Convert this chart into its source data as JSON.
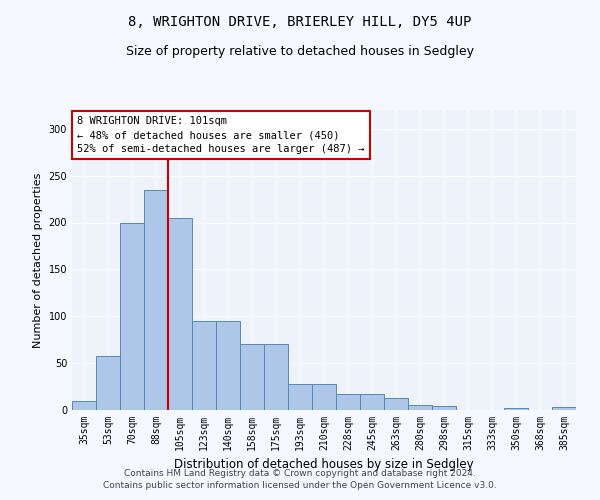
{
  "title": "8, WRIGHTON DRIVE, BRIERLEY HILL, DY5 4UP",
  "subtitle": "Size of property relative to detached houses in Sedgley",
  "xlabel": "Distribution of detached houses by size in Sedgley",
  "ylabel": "Number of detached properties",
  "categories": [
    "35sqm",
    "53sqm",
    "70sqm",
    "88sqm",
    "105sqm",
    "123sqm",
    "140sqm",
    "158sqm",
    "175sqm",
    "193sqm",
    "210sqm",
    "228sqm",
    "245sqm",
    "263sqm",
    "280sqm",
    "298sqm",
    "315sqm",
    "333sqm",
    "350sqm",
    "368sqm",
    "385sqm"
  ],
  "values": [
    10,
    58,
    200,
    235,
    205,
    95,
    95,
    70,
    70,
    28,
    28,
    17,
    17,
    13,
    5,
    4,
    0,
    0,
    2,
    0,
    3
  ],
  "bar_color": "#aec6e8",
  "bar_edge_color": "#5588bb",
  "vline_color": "#cc0000",
  "annotation_text": "8 WRIGHTON DRIVE: 101sqm\n← 48% of detached houses are smaller (450)\n52% of semi-detached houses are larger (487) →",
  "annotation_box_color": "#ffffff",
  "annotation_box_edge": "#cc0000",
  "ylim": [
    0,
    320
  ],
  "yticks": [
    0,
    50,
    100,
    150,
    200,
    250,
    300
  ],
  "background_color": "#eef2fa",
  "grid_color": "#ffffff",
  "footer_line1": "Contains HM Land Registry data © Crown copyright and database right 2024.",
  "footer_line2": "Contains public sector information licensed under the Open Government Licence v3.0.",
  "title_fontsize": 10,
  "subtitle_fontsize": 9,
  "xlabel_fontsize": 8.5,
  "ylabel_fontsize": 8,
  "tick_fontsize": 7,
  "footer_fontsize": 6.5
}
